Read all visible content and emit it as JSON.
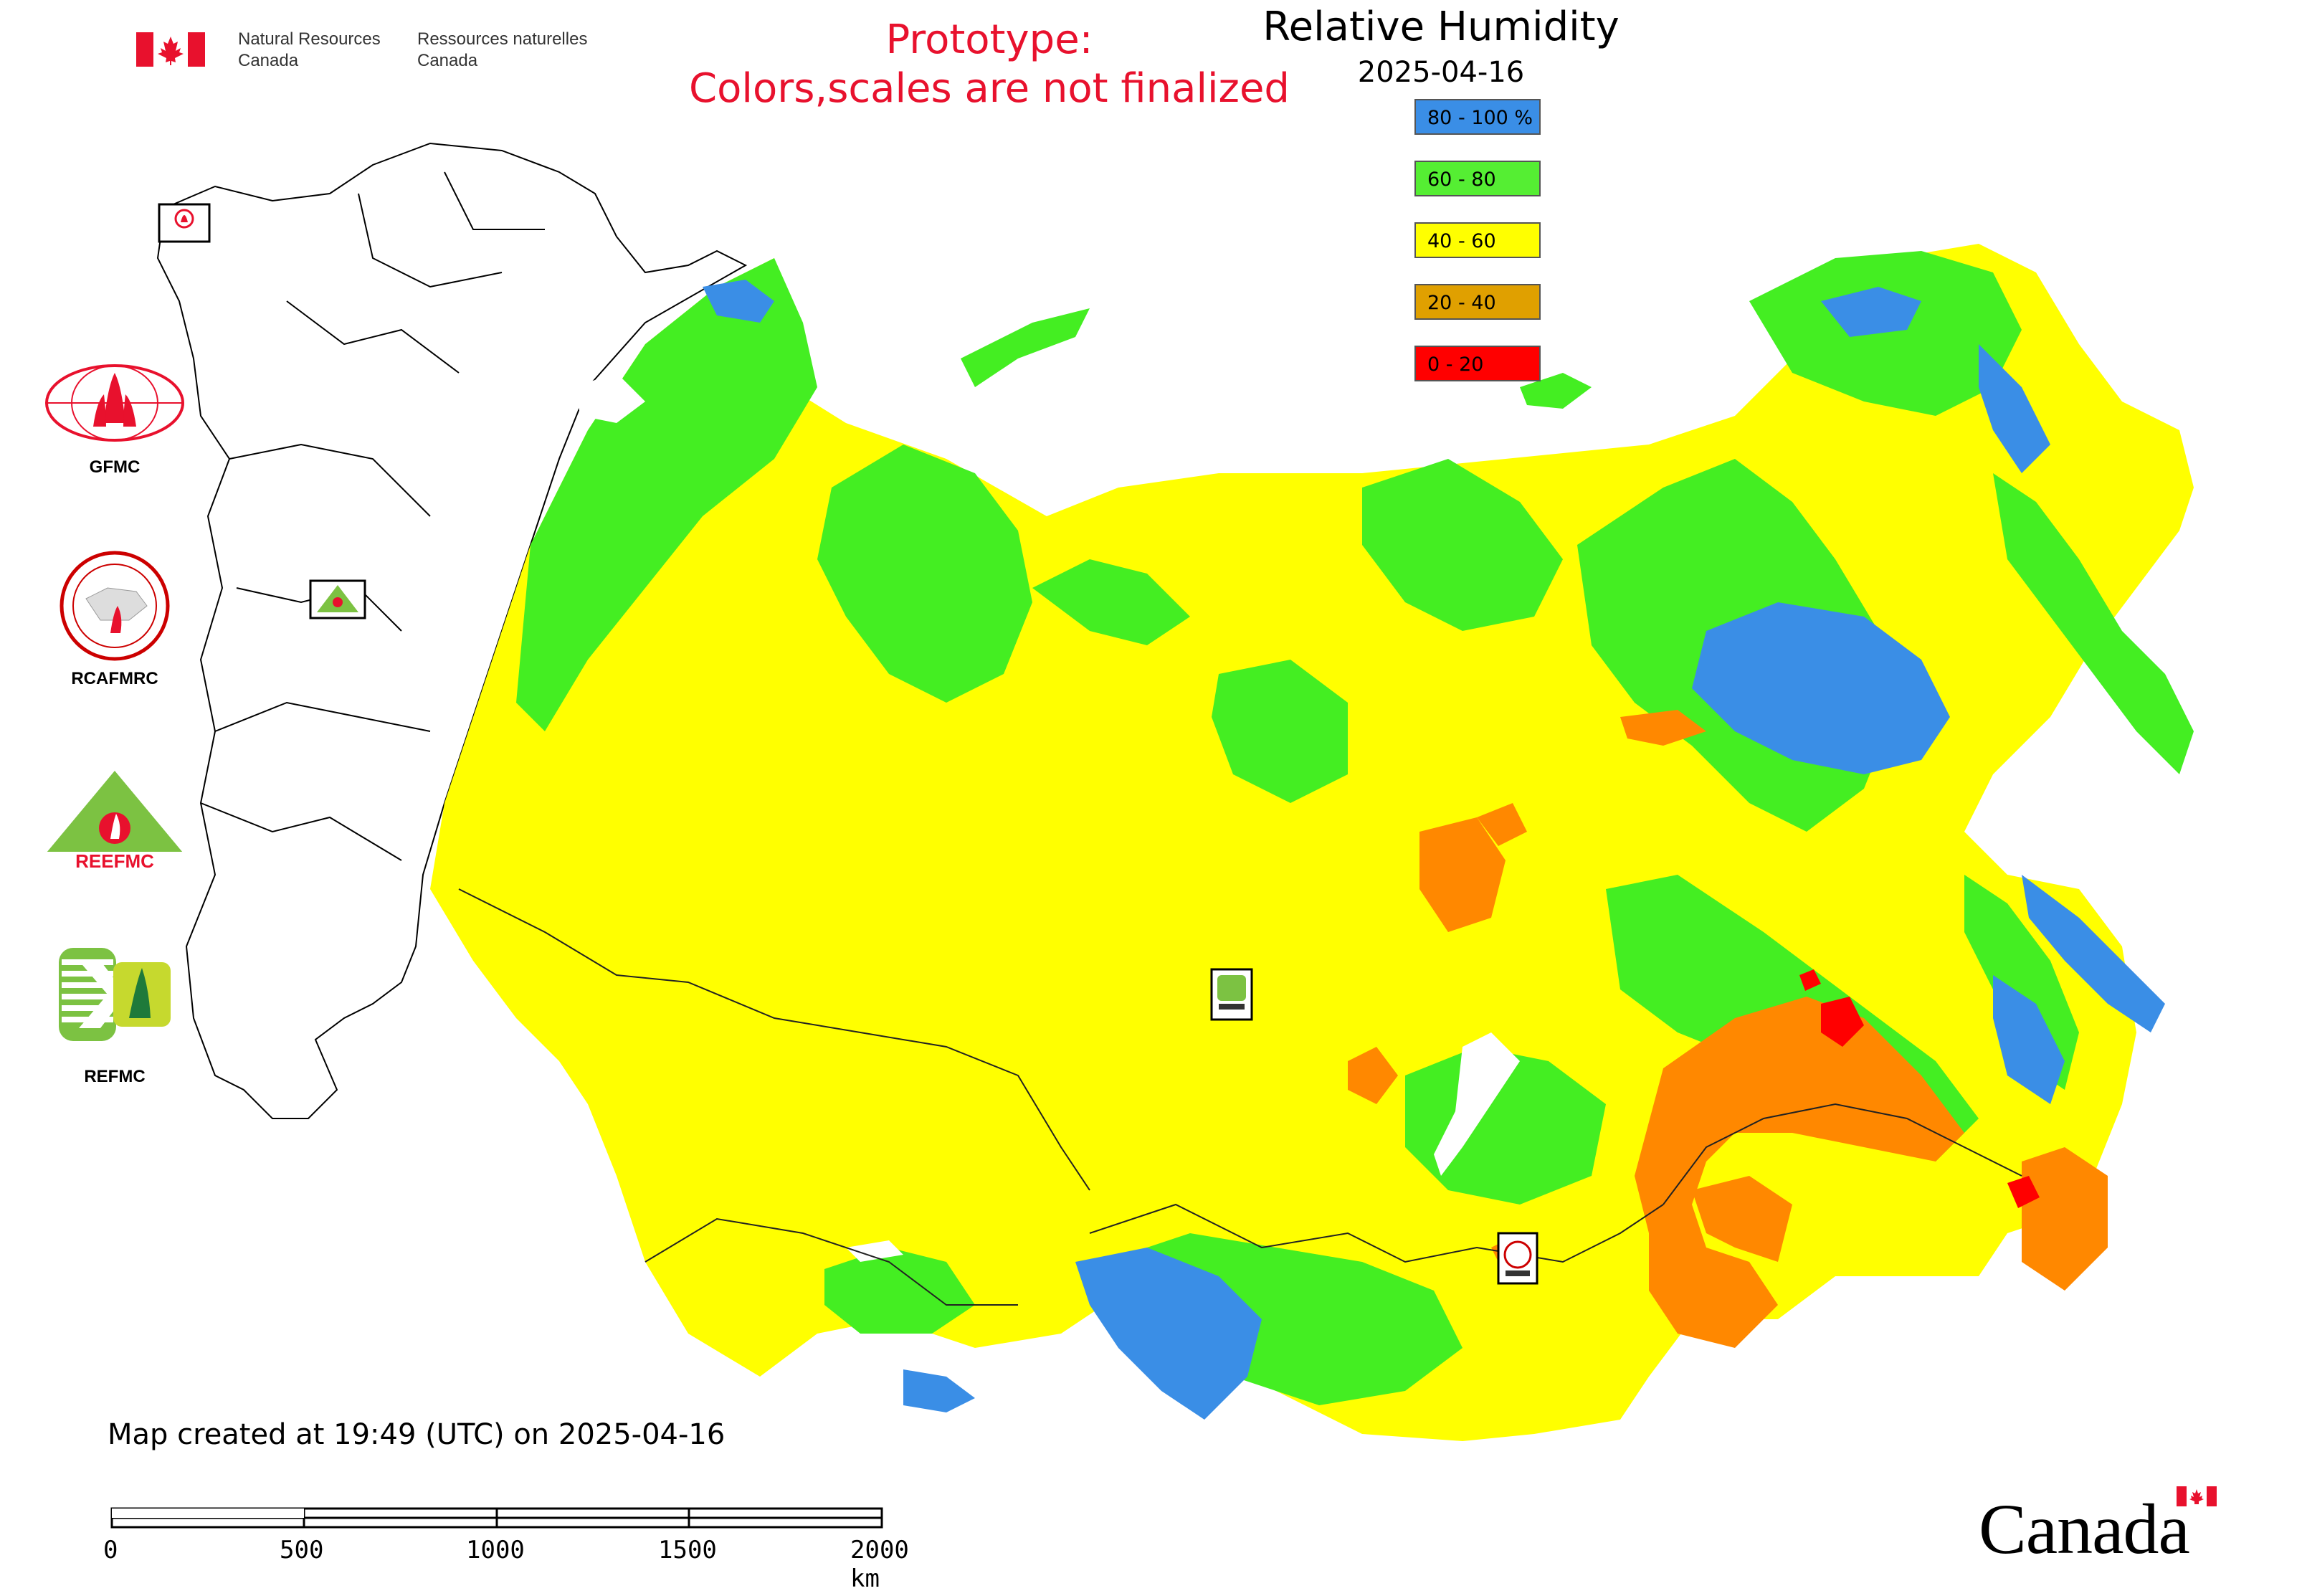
{
  "header": {
    "nrcan_en": "Natural Resources\nCanada",
    "nrcan_fr": "Ressources naturelles\nCanada",
    "nrcan_en_1": "Natural Resources",
    "nrcan_en_2": "Canada",
    "nrcan_fr_1": "Ressources naturelles",
    "nrcan_fr_2": "Canada",
    "prototype_line1": "Prototype:",
    "prototype_line2": "Colors,scales are not finalized"
  },
  "legend": {
    "title": "Relative Humidity",
    "date": "2025-04-16",
    "items": [
      {
        "label": "80 - 100 %",
        "color": "#3a8ee6"
      },
      {
        "label": "60 - 80",
        "color": "#55ee33"
      },
      {
        "label": "40 - 60",
        "color": "#ffff00"
      },
      {
        "label": "20 - 40",
        "color": "#e0a000"
      },
      {
        "label": "0 - 20",
        "color": "#ff0000"
      }
    ]
  },
  "logos": {
    "gfmc": "GFMC",
    "rcafmrc": "RCAFMRC",
    "reefmc": "REEFMC",
    "refmc": "REFMC"
  },
  "map_colors": {
    "very_humid": "#3a8ee6",
    "humid": "#44ee22",
    "medium": "#ffff00",
    "dry": "#ff8800",
    "very_dry": "#ff0000"
  },
  "footer": {
    "created": "Map created at 19:49 (UTC) on 2025-04-16",
    "scale_labels": [
      "0",
      "500",
      "1000",
      "1500",
      "2000 km"
    ],
    "canada": "Canada"
  }
}
